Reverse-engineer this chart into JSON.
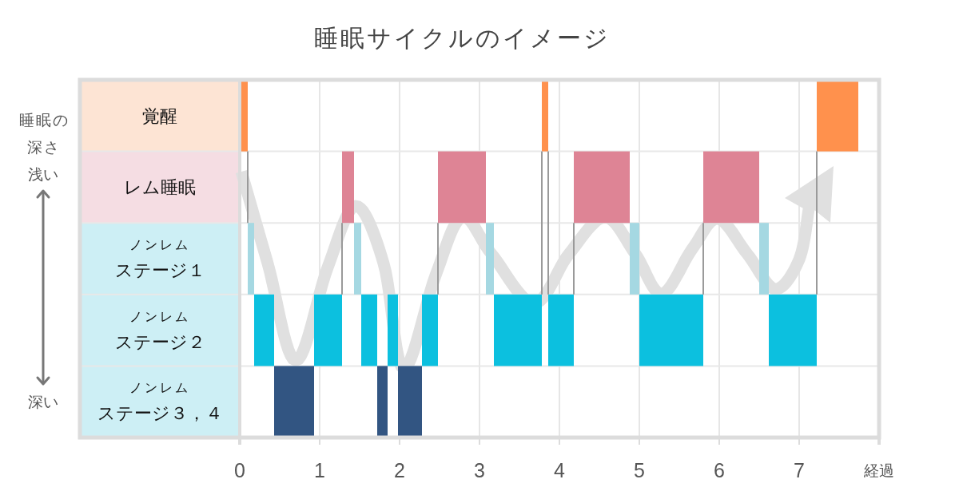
{
  "chart_data": {
    "type": "bar",
    "orientation": "horizontal",
    "title": "睡眠サイクルのイメージ",
    "xlabel": "経過",
    "ylabel": "睡眠の深さ",
    "annotations": [
      "浅い",
      "深い"
    ],
    "categories": [
      "覚醒",
      "レム睡眠",
      "ノンレムステージ１",
      "ノンレムステージ２",
      "ノンレムステージ３，４"
    ],
    "xlim": [
      0,
      8
    ],
    "xticks": [
      0,
      1,
      2,
      3,
      4,
      5,
      6,
      7
    ],
    "grid": true,
    "series": [
      {
        "values": [
          0.1,
          0.15,
          0.08,
          0.25,
          0.5
        ],
        "base": [
          0,
          1.28,
          0.1,
          0.18,
          0.43
        ],
        "colors": [
          "#ff914d",
          "#de8495",
          "#a5d8e2",
          "#0cc0df",
          "#325582"
        ]
      },
      {
        "values": [
          0.08,
          0.6,
          0.09,
          0.35,
          0.13
        ],
        "base": [
          3.78,
          2.48,
          1.43,
          0.93,
          1.72
        ],
        "colors": [
          "#ff914d",
          "#de8495",
          "#a5d8e2",
          "#0cc0df",
          "#325582"
        ]
      },
      {
        "values": [
          0.52,
          0.7,
          0.1,
          0.2,
          0.3
        ],
        "base": [
          7.22,
          4.18,
          3.08,
          1.52,
          1.98
        ],
        "colors": [
          "#ff914d",
          "#de8495",
          "#a5d8e2",
          "#0cc0df",
          "#325582"
        ]
      },
      {
        "values": [
          null,
          0.7,
          0.12,
          0.13,
          null
        ],
        "base": [
          null,
          5.8,
          4.88,
          1.85,
          null
        ],
        "colors": [
          null,
          "#de8495",
          "#a5d8e2",
          "#0cc0df",
          null
        ]
      },
      {
        "values": [
          null,
          null,
          0.12,
          0.2,
          null
        ],
        "base": [
          null,
          null,
          6.5,
          2.28,
          null
        ],
        "colors": [
          null,
          null,
          "#a5d8e2",
          "#0cc0df",
          null
        ]
      },
      {
        "values": [
          null,
          null,
          null,
          0.6,
          null
        ],
        "base": [
          null,
          null,
          null,
          3.18,
          null
        ],
        "colors": [
          null,
          null,
          null,
          "#0cc0df",
          null
        ]
      },
      {
        "values": [
          null,
          null,
          null,
          0.32,
          null
        ],
        "base": [
          null,
          null,
          null,
          3.86,
          null
        ],
        "colors": [
          null,
          null,
          null,
          "#0cc0df",
          null
        ]
      },
      {
        "values": [
          null,
          null,
          null,
          0.8,
          null
        ],
        "base": [
          null,
          null,
          null,
          5.0,
          null
        ],
        "colors": [
          null,
          null,
          null,
          "#0cc0df",
          null
        ]
      },
      {
        "values": [
          null,
          null,
          null,
          0.6,
          null
        ],
        "base": [
          null,
          null,
          null,
          6.62,
          null
        ],
        "colors": [
          null,
          null,
          null,
          "#0cc0df",
          null
        ]
      }
    ]
  }
}
